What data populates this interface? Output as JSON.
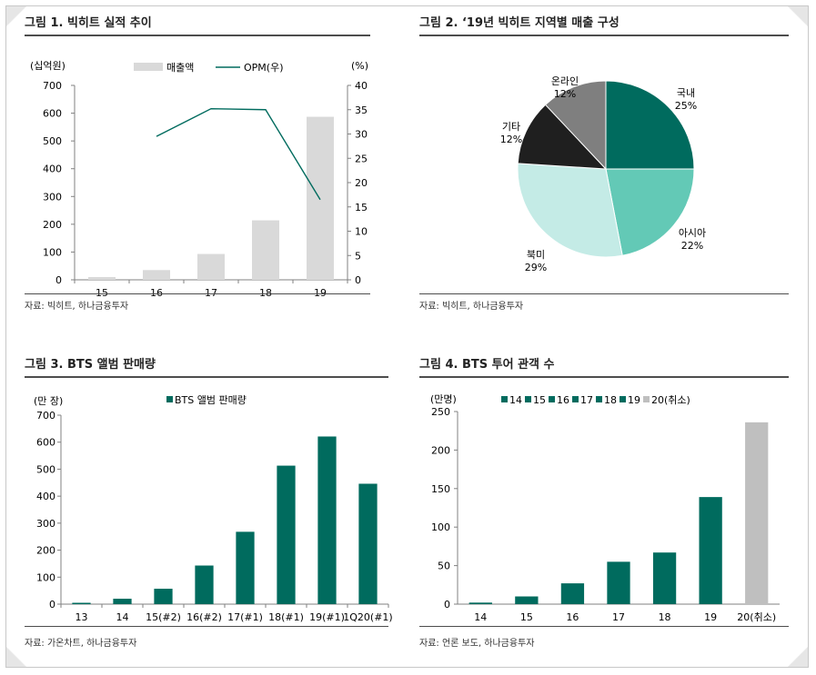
{
  "colors": {
    "teal": "#006b5e",
    "light_teal": "#63c9b6",
    "pale_teal": "#c4ebe6",
    "dark": "#1f1f1f",
    "gray": "#7f7f7f",
    "bar_gray": "#d9d9d9",
    "bar_gray2": "#bfbfbf",
    "line": "#006b5e"
  },
  "panels": [
    {
      "title": "그림 1. 빅히트 실적 추이",
      "source": "자료: 빅히트, 하나금융투자"
    },
    {
      "title": "그림 2. ‘19년 빅히트 지역별 매출 구성",
      "source": "자료: 빅히트, 하나금융투자"
    },
    {
      "title": "그림 3. BTS 앨범 판매량",
      "source": "자료: 가온차트, 하나금융투자"
    },
    {
      "title": "그림 4. BTS 투어 관객 수",
      "source": "자료: 언론 보도, 하나금융투자"
    }
  ],
  "chart_data": [
    {
      "type": "bar",
      "title": "그림 1. 빅히트 실적 추이",
      "categories": [
        "15",
        "16",
        "17",
        "18",
        "19"
      ],
      "series": [
        {
          "name": "매출액",
          "type": "bar",
          "axis": "left",
          "values": [
            10,
            35,
            93,
            214,
            587
          ]
        },
        {
          "name": "OPM(우)",
          "type": "line",
          "axis": "right",
          "values": [
            null,
            29.5,
            35.2,
            35.0,
            16.5
          ]
        }
      ],
      "ylabel": "(십억원)",
      "y2label": "(%)",
      "ylim": [
        0,
        700
      ],
      "y2lim": [
        0,
        40
      ],
      "yticks": [
        0,
        100,
        200,
        300,
        400,
        500,
        600,
        700
      ],
      "y2ticks": [
        0,
        5,
        10,
        15,
        20,
        25,
        30,
        35,
        40
      ],
      "legend": "top"
    },
    {
      "type": "pie",
      "title": "그림 2. ‘19년 빅히트 지역별 매출 구성",
      "slices": [
        {
          "label": "국내",
          "value": 25,
          "pct": "25%"
        },
        {
          "label": "아시아",
          "value": 22,
          "pct": "22%"
        },
        {
          "label": "북미",
          "value": 29,
          "pct": "29%"
        },
        {
          "label": "기타",
          "value": 12,
          "pct": "12%"
        },
        {
          "label": "온라인",
          "value": 12,
          "pct": "12%"
        }
      ]
    },
    {
      "type": "bar",
      "title": "그림 3. BTS 앨범 판매량",
      "categories": [
        "13",
        "14",
        "15(#2)",
        "16(#2)",
        "17(#1)",
        "18(#1)",
        "19(#1)",
        "1Q20(#1)"
      ],
      "series": [
        {
          "name": "BTS 앨범 판매량",
          "values": [
            5,
            20,
            57,
            143,
            268,
            513,
            621,
            446
          ]
        }
      ],
      "ylabel": "(만 장)",
      "ylim": [
        0,
        700
      ],
      "yticks": [
        0,
        100,
        200,
        300,
        400,
        500,
        600,
        700
      ],
      "legend": "top"
    },
    {
      "type": "bar",
      "title": "그림 4. BTS 투어 관객 수",
      "categories": [
        "14",
        "15",
        "16",
        "17",
        "18",
        "19",
        "20(취소)"
      ],
      "series": [
        {
          "name": "14",
          "values": [
            2,
            null,
            null,
            null,
            null,
            null,
            null
          ]
        },
        {
          "name": "15",
          "values": [
            null,
            10,
            null,
            null,
            null,
            null,
            null
          ]
        },
        {
          "name": "16",
          "values": [
            null,
            null,
            27,
            null,
            null,
            null,
            null
          ]
        },
        {
          "name": "17",
          "values": [
            null,
            null,
            null,
            55,
            null,
            null,
            null
          ]
        },
        {
          "name": "18",
          "values": [
            null,
            null,
            null,
            null,
            67,
            null,
            null
          ]
        },
        {
          "name": "19",
          "values": [
            null,
            null,
            null,
            null,
            null,
            139,
            null
          ]
        },
        {
          "name": "20(취소)",
          "values": [
            null,
            null,
            null,
            null,
            null,
            null,
            236
          ]
        }
      ],
      "ylabel": "(만명)",
      "ylim": [
        0,
        250
      ],
      "yticks": [
        0,
        50,
        100,
        150,
        200,
        250
      ],
      "legend": "top"
    }
  ]
}
